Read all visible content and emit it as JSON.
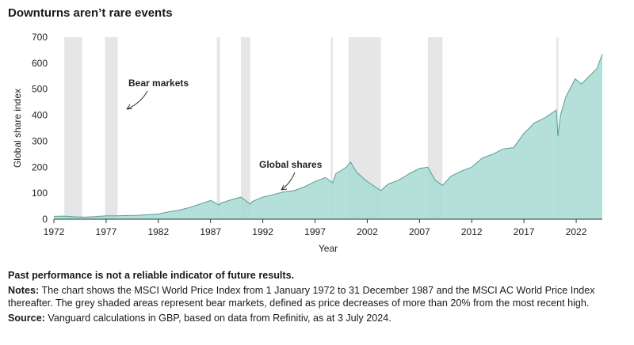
{
  "title": "Downturns aren’t rare events",
  "chart_data": {
    "type": "area",
    "xlabel": "Year",
    "ylabel": "Global share index",
    "xlim": [
      1972,
      2024.5
    ],
    "ylim": [
      0,
      700
    ],
    "x_ticks": [
      1972,
      1977,
      1982,
      1987,
      1992,
      1997,
      2002,
      2007,
      2012,
      2017,
      2022
    ],
    "y_ticks": [
      0,
      100,
      200,
      300,
      400,
      500,
      600,
      700
    ],
    "colors": {
      "area": "#a8dad3",
      "line": "#3fa898",
      "bear": "#e6e6e6"
    },
    "annotations": [
      {
        "text": "Bear markets",
        "points_to": "1977 bear market"
      },
      {
        "text": "Global shares",
        "points_to": "global share index line around 1996"
      }
    ],
    "bear_markets": [
      [
        1973.0,
        1974.7
      ],
      [
        1976.9,
        1978.1
      ],
      [
        1987.6,
        1987.9
      ],
      [
        1989.9,
        1990.8
      ],
      [
        1998.5,
        1998.7
      ],
      [
        2000.2,
        2003.3
      ],
      [
        2007.8,
        2009.2
      ],
      [
        2020.1,
        2020.3
      ]
    ],
    "series": [
      {
        "x": [
          1972,
          1973,
          1974,
          1975,
          1976,
          1977,
          1978,
          1979,
          1980,
          1981,
          1982,
          1983,
          1984,
          1985,
          1986,
          1987,
          1987.8,
          1988,
          1989,
          1989.9,
          1990.8,
          1991,
          1992,
          1993,
          1994,
          1995,
          1996,
          1997,
          1998,
          1998.7,
          1999,
          2000,
          2000.4,
          2001,
          2002,
          2003.3,
          2004,
          2005,
          2006,
          2007,
          2007.8,
          2008.5,
          2009.2,
          2010,
          2011,
          2012,
          2013,
          2014,
          2015,
          2016,
          2017,
          2018,
          2019,
          2020.1,
          2020.25,
          2020.5,
          2021,
          2021.9,
          2022.5,
          2023,
          2024,
          2024.5
        ],
        "values": [
          11,
          12,
          9,
          8,
          10,
          13,
          13,
          14,
          15,
          17,
          20,
          28,
          35,
          45,
          58,
          72,
          55,
          62,
          75,
          85,
          58,
          68,
          85,
          95,
          105,
          110,
          125,
          145,
          160,
          140,
          175,
          200,
          220,
          180,
          145,
          110,
          135,
          150,
          175,
          195,
          200,
          150,
          130,
          165,
          185,
          200,
          235,
          250,
          270,
          275,
          330,
          370,
          390,
          420,
          320,
          400,
          470,
          540,
          520,
          540,
          580,
          635
        ]
      }
    ]
  },
  "notes": {
    "disclaimer": "Past performance is not a reliable indicator of future results.",
    "notes_label": "Notes:",
    "notes_text": " The chart shows the MSCI World Price Index from 1 January 1972 to 31 December 1987 and the MSCI AC World Price Index thereafter. The grey shaded areas represent bear markets, defined as price decreases of more than 20% from the most recent high.",
    "source_label": "Source:",
    "source_text": " Vanguard calculations in GBP, based on data from Refinitiv, as at 3 July 2024."
  }
}
